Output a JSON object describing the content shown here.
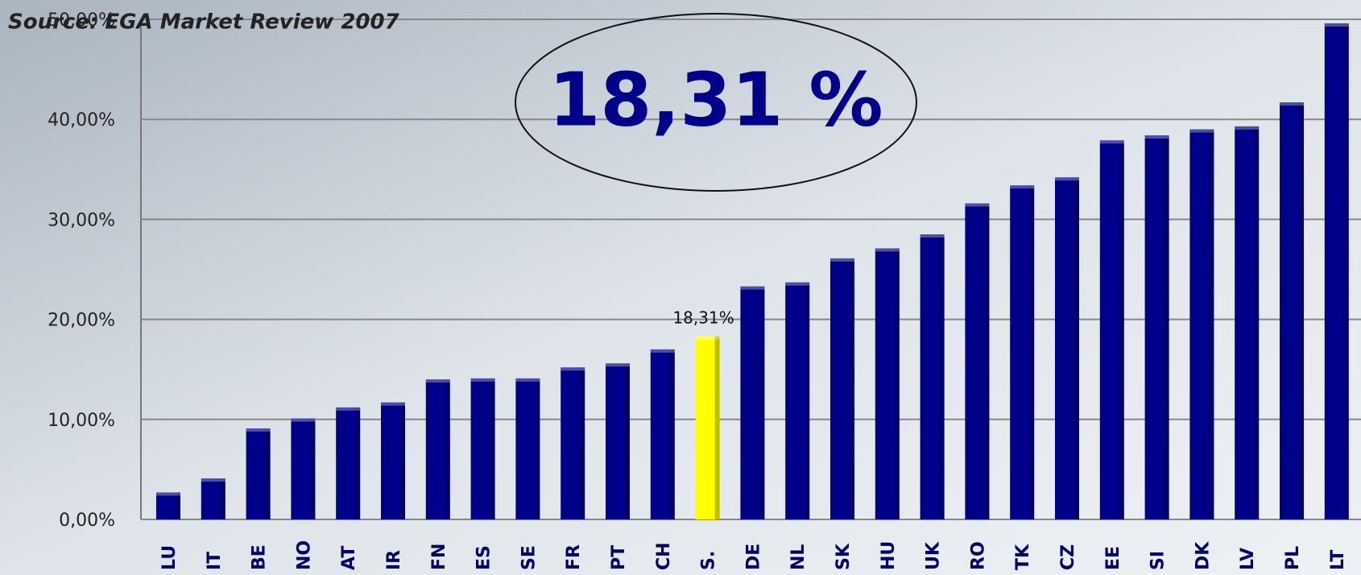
{
  "chart_data": {
    "type": "bar",
    "title": "Source: EGA Market Review 2007",
    "annotation": "18,31 %",
    "categories": [
      "LU",
      "IT",
      "BE",
      "NO",
      "AT",
      "IR",
      "FN",
      "ES",
      "SE",
      "FR",
      "PT",
      "CH",
      "S.",
      "DE",
      "NL",
      "SK",
      "HU",
      "UK",
      "RO",
      "TK",
      "CZ",
      "EE",
      "SI",
      "DK",
      "LV",
      "PL",
      "LT"
    ],
    "values": [
      2.7,
      4.1,
      9.1,
      10.1,
      11.2,
      11.7,
      14.0,
      14.1,
      14.1,
      15.2,
      15.6,
      17.0,
      18.31,
      23.3,
      23.7,
      26.1,
      27.1,
      28.5,
      31.6,
      33.4,
      34.2,
      37.9,
      38.4,
      39.0,
      39.3,
      41.7,
      49.6
    ],
    "value_labels": [
      null,
      null,
      null,
      null,
      null,
      null,
      null,
      null,
      null,
      null,
      null,
      null,
      "18,31%",
      null,
      null,
      null,
      null,
      null,
      null,
      null,
      null,
      null,
      null,
      null,
      null,
      null,
      null
    ],
    "colors": [
      "#00008b",
      "#00008b",
      "#00008b",
      "#00008b",
      "#00008b",
      "#00008b",
      "#00008b",
      "#00008b",
      "#00008b",
      "#00008b",
      "#00008b",
      "#00008b",
      "#ffff00",
      "#00008b",
      "#00008b",
      "#00008b",
      "#00008b",
      "#00008b",
      "#00008b",
      "#00008b",
      "#00008b",
      "#00008b",
      "#00008b",
      "#00008b",
      "#00008b",
      "#00008b",
      "#00008b"
    ],
    "ylim": [
      0,
      50
    ],
    "yticks": [
      {
        "value": 0,
        "label": "0,00%"
      },
      {
        "value": 10,
        "label": "10,00%"
      },
      {
        "value": 20,
        "label": "20,00%"
      },
      {
        "value": 30,
        "label": "30,00%"
      },
      {
        "value": 40,
        "label": "40,00%"
      },
      {
        "value": 50,
        "label": "50,00%"
      }
    ],
    "grid": true
  }
}
